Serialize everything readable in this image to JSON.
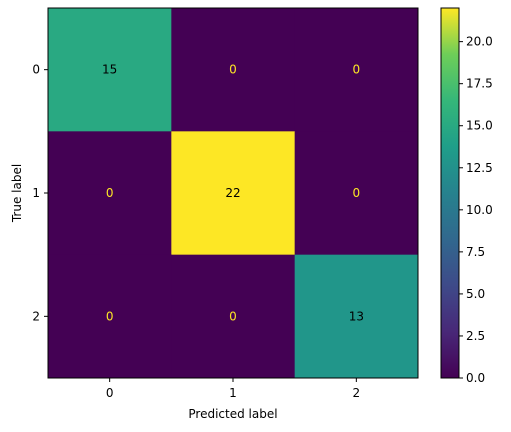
{
  "chart_data": {
    "type": "heatmap",
    "title": "",
    "xlabel": "Predicted label",
    "ylabel": "True label",
    "x_categories": [
      "0",
      "1",
      "2"
    ],
    "y_categories": [
      "0",
      "1",
      "2"
    ],
    "values": [
      [
        15,
        0,
        0
      ],
      [
        0,
        22,
        0
      ],
      [
        0,
        0,
        13
      ]
    ],
    "colormap": "viridis",
    "color_range": [
      0,
      22
    ],
    "colorbar_ticks": [
      "0.0",
      "2.5",
      "5.0",
      "7.5",
      "10.0",
      "12.5",
      "15.0",
      "17.5",
      "20.0"
    ],
    "grid": false,
    "text_colors": {
      "low": "#fde725",
      "high": "#000000"
    }
  }
}
